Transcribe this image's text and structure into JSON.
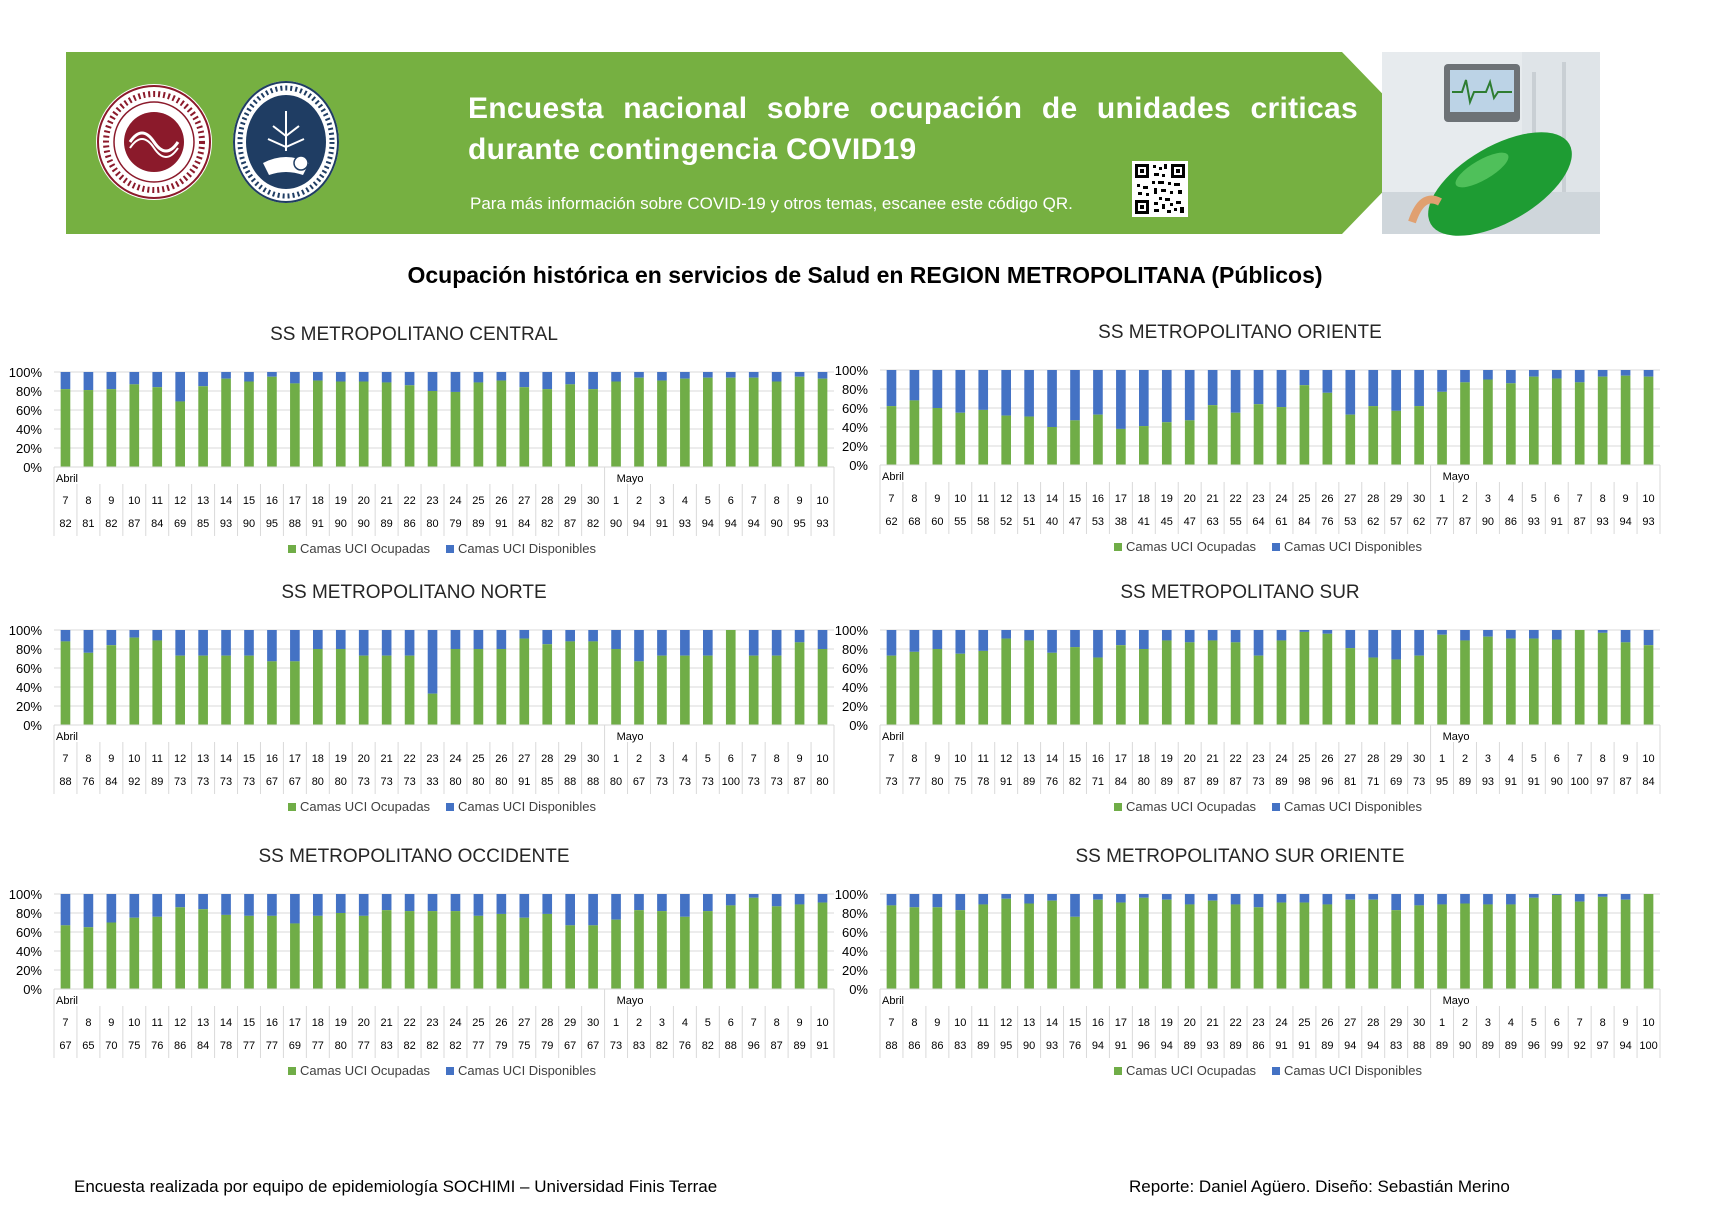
{
  "banner": {
    "title": "Encuesta nacional sobre ocupación de unidades criticas durante contingencia COVID19",
    "subtitle": "Para más información sobre COVID-19 y otros temas, escanee este código QR.",
    "logo_left_text": "SOCIEDAD CHILENA DE MEDICINA INTENSIVA",
    "logo_right_text": "UNIVERSIDAD FINIS TERRAE · VINCE IN BONO MALUM",
    "colors": {
      "green": "#76b041",
      "dark_green": "#2e7d32"
    }
  },
  "main_title": "Ocupación histórica en servicios de Salud en REGION METROPOLITANA (Públicos)",
  "footer": {
    "left": "Encuesta realizada por equipo de epidemiología SOCHIMI – Universidad Finis Terrae",
    "right": "Reporte: Daniel Agüero. Diseño: Sebastián Merino"
  },
  "colors": {
    "occupied": "#70ad47",
    "available": "#4472c4",
    "grid": "#d9d9d9"
  },
  "chart_data": [
    {
      "type": "bar",
      "stacked": true,
      "title": "SS METROPOLITANO CENTRAL",
      "month_labels": [
        "Abril",
        "Mayo"
      ],
      "categories": [
        "7",
        "8",
        "9",
        "10",
        "11",
        "12",
        "13",
        "14",
        "15",
        "16",
        "17",
        "18",
        "19",
        "20",
        "21",
        "22",
        "23",
        "24",
        "25",
        "26",
        "27",
        "28",
        "29",
        "30",
        "1",
        "2",
        "3",
        "4",
        "5",
        "6",
        "7",
        "8",
        "9",
        "10"
      ],
      "series": [
        {
          "name": "Camas UCI Ocupadas",
          "values": [
            82,
            81,
            82,
            87,
            84,
            69,
            85,
            93,
            90,
            95,
            88,
            91,
            90,
            90,
            89,
            86,
            80,
            79,
            89,
            91,
            84,
            82,
            87,
            82,
            90,
            94,
            91,
            93,
            94,
            94,
            94,
            90,
            95,
            93
          ]
        },
        {
          "name": "Camas UCI Disponibles",
          "values": [
            18,
            19,
            18,
            13,
            16,
            31,
            15,
            7,
            10,
            5,
            12,
            9,
            10,
            10,
            11,
            14,
            20,
            21,
            11,
            9,
            16,
            18,
            13,
            18,
            10,
            6,
            9,
            7,
            6,
            6,
            6,
            10,
            5,
            7
          ]
        }
      ],
      "yticks": [
        "0%",
        "20%",
        "40%",
        "60%",
        "80%",
        "100%"
      ],
      "ylim": [
        0,
        100
      ],
      "legend": "bottom"
    },
    {
      "type": "bar",
      "stacked": true,
      "title": "SS METROPOLITANO ORIENTE",
      "month_labels": [
        "Abril",
        "Mayo"
      ],
      "categories": [
        "7",
        "8",
        "9",
        "10",
        "11",
        "12",
        "13",
        "14",
        "15",
        "16",
        "17",
        "18",
        "19",
        "20",
        "21",
        "22",
        "23",
        "24",
        "25",
        "26",
        "27",
        "28",
        "29",
        "30",
        "1",
        "2",
        "3",
        "4",
        "5",
        "6",
        "7",
        "8",
        "9",
        "10"
      ],
      "series": [
        {
          "name": "Camas UCI Ocupadas",
          "values": [
            62,
            68,
            60,
            55,
            58,
            52,
            51,
            40,
            47,
            53,
            38,
            41,
            45,
            47,
            63,
            55,
            64,
            61,
            84,
            76,
            53,
            62,
            57,
            62,
            77,
            87,
            90,
            86,
            93,
            91,
            87,
            93,
            94,
            93
          ]
        },
        {
          "name": "Camas UCI Disponibles",
          "values": [
            38,
            32,
            40,
            45,
            42,
            48,
            49,
            60,
            53,
            47,
            62,
            59,
            55,
            53,
            37,
            45,
            36,
            39,
            16,
            24,
            47,
            38,
            43,
            38,
            23,
            13,
            10,
            14,
            7,
            9,
            13,
            7,
            6,
            7
          ]
        }
      ],
      "yticks": [
        "0%",
        "20%",
        "40%",
        "60%",
        "80%",
        "100%"
      ],
      "ylim": [
        0,
        100
      ],
      "legend": "bottom"
    },
    {
      "type": "bar",
      "stacked": true,
      "title": "SS METROPOLITANO NORTE",
      "month_labels": [
        "Abril",
        "Mayo"
      ],
      "categories": [
        "7",
        "8",
        "9",
        "10",
        "11",
        "12",
        "13",
        "14",
        "15",
        "16",
        "17",
        "18",
        "19",
        "20",
        "21",
        "22",
        "23",
        "24",
        "25",
        "26",
        "27",
        "28",
        "29",
        "30",
        "1",
        "2",
        "3",
        "4",
        "5",
        "6",
        "7",
        "8",
        "9",
        "10"
      ],
      "series": [
        {
          "name": "Camas UCI Ocupadas",
          "values": [
            88,
            76,
            84,
            92,
            89,
            73,
            73,
            73,
            73,
            67,
            67,
            80,
            80,
            73,
            73,
            73,
            33,
            80,
            80,
            80,
            91,
            85,
            88,
            88,
            80,
            67,
            73,
            73,
            73,
            100,
            73,
            73,
            87,
            80
          ]
        },
        {
          "name": "Camas UCI Disponibles",
          "values": [
            12,
            24,
            16,
            8,
            11,
            27,
            27,
            27,
            27,
            33,
            33,
            20,
            20,
            27,
            27,
            27,
            67,
            20,
            20,
            20,
            9,
            15,
            12,
            12,
            20,
            33,
            27,
            27,
            27,
            0,
            27,
            27,
            13,
            20
          ]
        }
      ],
      "yticks": [
        "0%",
        "20%",
        "40%",
        "60%",
        "80%",
        "100%"
      ],
      "ylim": [
        0,
        100
      ],
      "legend": "bottom"
    },
    {
      "type": "bar",
      "stacked": true,
      "title": "SS METROPOLITANO SUR",
      "month_labels": [
        "Abril",
        "Mayo"
      ],
      "categories": [
        "7",
        "8",
        "9",
        "10",
        "11",
        "12",
        "13",
        "14",
        "15",
        "16",
        "17",
        "18",
        "19",
        "20",
        "21",
        "22",
        "23",
        "24",
        "25",
        "26",
        "27",
        "28",
        "29",
        "30",
        "1",
        "2",
        "3",
        "4",
        "5",
        "6",
        "7",
        "8",
        "9",
        "10"
      ],
      "series": [
        {
          "name": "Camas UCI Ocupadas",
          "values": [
            73,
            77,
            80,
            75,
            78,
            91,
            89,
            76,
            82,
            71,
            84,
            80,
            89,
            87,
            89,
            87,
            73,
            89,
            98,
            96,
            81,
            71,
            69,
            73,
            95,
            89,
            93,
            91,
            91,
            90,
            100,
            97,
            87,
            84
          ]
        },
        {
          "name": "Camas UCI Disponibles",
          "values": [
            27,
            23,
            20,
            25,
            22,
            9,
            11,
            24,
            18,
            29,
            16,
            20,
            11,
            13,
            11,
            13,
            27,
            11,
            2,
            4,
            19,
            29,
            31,
            27,
            5,
            11,
            7,
            9,
            9,
            10,
            0,
            3,
            13,
            16
          ]
        }
      ],
      "yticks": [
        "0%",
        "20%",
        "40%",
        "60%",
        "80%",
        "100%"
      ],
      "ylim": [
        0,
        100
      ],
      "legend": "bottom"
    },
    {
      "type": "bar",
      "stacked": true,
      "title": "SS METROPOLITANO OCCIDENTE",
      "month_labels": [
        "Abril",
        "Mayo"
      ],
      "categories": [
        "7",
        "8",
        "9",
        "10",
        "11",
        "12",
        "13",
        "14",
        "15",
        "16",
        "17",
        "18",
        "19",
        "20",
        "21",
        "22",
        "23",
        "24",
        "25",
        "26",
        "27",
        "28",
        "29",
        "30",
        "1",
        "2",
        "3",
        "4",
        "5",
        "6",
        "7",
        "8",
        "9",
        "10"
      ],
      "series": [
        {
          "name": "Camas UCI Ocupadas",
          "values": [
            67,
            65,
            70,
            75,
            76,
            86,
            84,
            78,
            77,
            77,
            69,
            77,
            80,
            77,
            83,
            82,
            82,
            82,
            77,
            79,
            75,
            79,
            67,
            67,
            73,
            83,
            82,
            76,
            82,
            88,
            96,
            87,
            89,
            91
          ]
        },
        {
          "name": "Camas UCI Disponibles",
          "values": [
            33,
            35,
            30,
            25,
            24,
            14,
            16,
            22,
            23,
            23,
            31,
            23,
            20,
            23,
            17,
            18,
            18,
            18,
            23,
            21,
            25,
            21,
            33,
            33,
            27,
            17,
            18,
            24,
            18,
            12,
            4,
            13,
            11,
            9
          ]
        }
      ],
      "yticks": [
        "0%",
        "20%",
        "40%",
        "60%",
        "80%",
        "100%"
      ],
      "ylim": [
        0,
        100
      ],
      "legend": "bottom"
    },
    {
      "type": "bar",
      "stacked": true,
      "title": "SS METROPOLITANO SUR ORIENTE",
      "month_labels": [
        "Abril",
        "Mayo"
      ],
      "categories": [
        "7",
        "8",
        "9",
        "10",
        "11",
        "12",
        "13",
        "14",
        "15",
        "16",
        "17",
        "18",
        "19",
        "20",
        "21",
        "22",
        "23",
        "24",
        "25",
        "26",
        "27",
        "28",
        "29",
        "30",
        "1",
        "2",
        "3",
        "4",
        "5",
        "6",
        "7",
        "8",
        "9",
        "10"
      ],
      "series": [
        {
          "name": "Camas UCI Ocupadas",
          "values": [
            88,
            86,
            86,
            83,
            89,
            95,
            90,
            93,
            76,
            94,
            91,
            96,
            94,
            89,
            93,
            89,
            86,
            91,
            91,
            89,
            94,
            94,
            83,
            88,
            89,
            90,
            89,
            89,
            96,
            99,
            92,
            97,
            94,
            100
          ]
        },
        {
          "name": "Camas UCI Disponibles",
          "values": [
            12,
            14,
            14,
            17,
            11,
            5,
            10,
            7,
            24,
            6,
            9,
            4,
            6,
            11,
            7,
            11,
            14,
            9,
            9,
            11,
            6,
            6,
            17,
            12,
            11,
            10,
            11,
            11,
            4,
            1,
            8,
            3,
            6,
            0
          ]
        }
      ],
      "yticks": [
        "0%",
        "20%",
        "40%",
        "60%",
        "80%",
        "100%"
      ],
      "ylim": [
        0,
        100
      ],
      "legend": "bottom"
    }
  ]
}
